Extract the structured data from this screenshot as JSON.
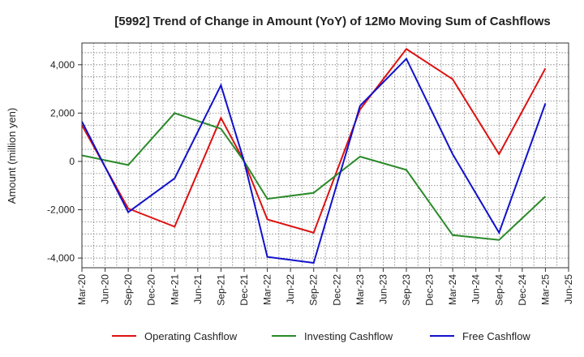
{
  "chart_data": {
    "type": "line",
    "title": "[5992]  Trend of Change in Amount (YoY) of 12Mo Moving Sum of Cashflows",
    "xlabel": "",
    "ylabel": "Amount (million yen)",
    "ylim": [
      -4400,
      4900
    ],
    "yticks": [
      4000,
      2000,
      0,
      -2000,
      -4000
    ],
    "ytick_labels": [
      "4,000",
      "2,000",
      "0",
      "-2,000",
      "-4,000"
    ],
    "x_tick_labels": [
      "Mar-20",
      "Jun-20",
      "Sep-20",
      "Dec-20",
      "Mar-21",
      "Jun-21",
      "Sep-21",
      "Dec-21",
      "Mar-22",
      "Jun-22",
      "Sep-22",
      "Dec-22",
      "Mar-23",
      "Jun-23",
      "Sep-23",
      "Dec-23",
      "Mar-24",
      "Jun-24",
      "Sep-24",
      "Dec-24",
      "Mar-25",
      "Jun-25"
    ],
    "grid": true,
    "legend_position": "bottom",
    "series": [
      {
        "name": "Operating Cashflow",
        "color": "#dd1111",
        "points": [
          [
            "Mar-20",
            1500
          ],
          [
            "Sep-20",
            -1950
          ],
          [
            "Mar-21",
            -2700
          ],
          [
            "Sep-21",
            1800
          ],
          [
            "Dec-21",
            0
          ],
          [
            "Mar-22",
            -2400
          ],
          [
            "Sep-22",
            -2950
          ],
          [
            "Mar-23",
            2150
          ],
          [
            "Sep-23",
            4650
          ],
          [
            "Mar-24",
            3400
          ],
          [
            "Sep-24",
            300
          ],
          [
            "Mar-25",
            3850
          ]
        ]
      },
      {
        "name": "Investing Cashflow",
        "color": "#2a8a2a",
        "points": [
          [
            "Mar-20",
            250
          ],
          [
            "Sep-20",
            -150
          ],
          [
            "Mar-21",
            2000
          ],
          [
            "Sep-21",
            1350
          ],
          [
            "Dec-21",
            0
          ],
          [
            "Mar-22",
            -1550
          ],
          [
            "Sep-22",
            -1300
          ],
          [
            "Mar-23",
            200
          ],
          [
            "Sep-23",
            -350
          ],
          [
            "Mar-24",
            -3050
          ],
          [
            "Sep-24",
            -3250
          ],
          [
            "Mar-25",
            -1450
          ]
        ]
      },
      {
        "name": "Free Cashflow",
        "color": "#1111cc",
        "points": [
          [
            "Mar-20",
            1650
          ],
          [
            "Sep-20",
            -2100
          ],
          [
            "Mar-21",
            -700
          ],
          [
            "Sep-21",
            3150
          ],
          [
            "Dec-21",
            0
          ],
          [
            "Mar-22",
            -3950
          ],
          [
            "Sep-22",
            -4200
          ],
          [
            "Mar-23",
            2300
          ],
          [
            "Sep-23",
            4250
          ],
          [
            "Mar-24",
            300
          ],
          [
            "Sep-24",
            -2950
          ],
          [
            "Mar-25",
            2400
          ]
        ]
      }
    ]
  }
}
